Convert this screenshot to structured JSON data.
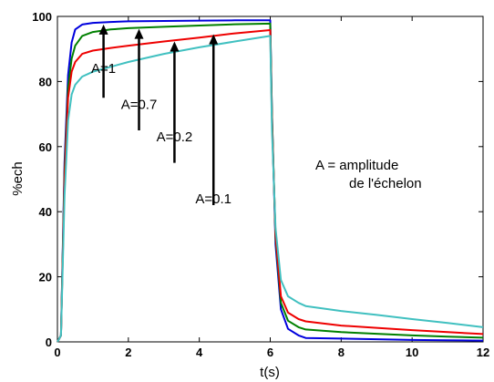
{
  "chart_data": {
    "type": "line",
    "title": "",
    "xlabel": "t(s)",
    "ylabel": "%ech",
    "xlim": [
      0,
      12
    ],
    "ylim": [
      0,
      100
    ],
    "xticks": [
      0,
      2,
      4,
      6,
      8,
      10,
      12
    ],
    "yticks": [
      0,
      20,
      40,
      60,
      80,
      100
    ],
    "grid": false,
    "legend": "none",
    "series": [
      {
        "color": "#0000dd",
        "x": [
          0,
          0.1,
          0.2,
          0.3,
          0.4,
          0.5,
          0.7,
          1.0,
          1.5,
          2,
          3,
          4,
          5,
          6,
          6.05,
          6.15,
          6.3,
          6.5,
          6.8,
          7,
          8,
          9,
          10,
          11,
          12
        ],
        "y": [
          0,
          2,
          55,
          82,
          92,
          96,
          97.5,
          98,
          98.3,
          98.5,
          98.6,
          98.7,
          98.8,
          98.8,
          70,
          30,
          10,
          4,
          2,
          1.2,
          1,
          0.8,
          0.6,
          0.5,
          0.4
        ]
      },
      {
        "color": "#008000",
        "x": [
          0,
          0.1,
          0.2,
          0.3,
          0.4,
          0.5,
          0.7,
          1.0,
          1.5,
          2,
          3,
          4,
          5,
          6,
          6.05,
          6.15,
          6.3,
          6.5,
          6.8,
          7,
          8,
          9,
          10,
          11,
          12
        ],
        "y": [
          0,
          2,
          52,
          78,
          87,
          91,
          94,
          95.2,
          96,
          96.4,
          96.8,
          97.2,
          97.6,
          97.8,
          70,
          32,
          12,
          6.5,
          4.5,
          3.8,
          3,
          2.5,
          2,
          1.6,
          1.3
        ]
      },
      {
        "color": "#ee0000",
        "x": [
          0,
          0.1,
          0.2,
          0.3,
          0.4,
          0.5,
          0.7,
          1.0,
          1.5,
          2,
          3,
          4,
          5,
          6,
          6.05,
          6.15,
          6.3,
          6.5,
          6.8,
          7,
          8,
          9,
          10,
          11,
          12
        ],
        "y": [
          0,
          2,
          50,
          75,
          83,
          86,
          88.5,
          89.5,
          90.3,
          91,
          92.3,
          93.5,
          94.8,
          95.8,
          68,
          33,
          14,
          9,
          7,
          6.3,
          5,
          4.3,
          3.6,
          3,
          2.4
        ]
      },
      {
        "color": "#40c0c0",
        "x": [
          0,
          0.1,
          0.2,
          0.3,
          0.4,
          0.5,
          0.7,
          1.0,
          1.5,
          2,
          3,
          4,
          5,
          6,
          6.05,
          6.15,
          6.3,
          6.5,
          6.8,
          7,
          8,
          9,
          10,
          11,
          12
        ],
        "y": [
          0,
          2,
          45,
          68,
          76,
          79,
          81.5,
          83,
          84.5,
          86,
          88.5,
          90.5,
          92.3,
          94,
          65,
          35,
          19,
          14,
          12,
          11,
          9.5,
          8.3,
          7,
          5.8,
          4.5
        ]
      }
    ],
    "annotations": [
      {
        "text": "A=1",
        "label_x": 1.3,
        "label_y": 8.4,
        "tip_x": 1.3,
        "tip_y": 97.5,
        "tail_y": 75
      },
      {
        "text": "A=0.7",
        "label_x": 2.3,
        "label_y": 7.3,
        "tip_x": 2.3,
        "tip_y": 96.2,
        "tail_y": 65
      },
      {
        "text": "A=0.2",
        "label_x": 3.3,
        "label_y": 6.3,
        "tip_x": 3.3,
        "tip_y": 92.3,
        "tail_y": 55
      },
      {
        "text": "A=0.1",
        "label_x": 4.4,
        "label_y": 4.4,
        "tip_x": 4.4,
        "tip_y": 94.5,
        "tail_y": 42
      }
    ],
    "note": {
      "line1": "A = amplitude",
      "line2": "de l'échelon"
    }
  }
}
